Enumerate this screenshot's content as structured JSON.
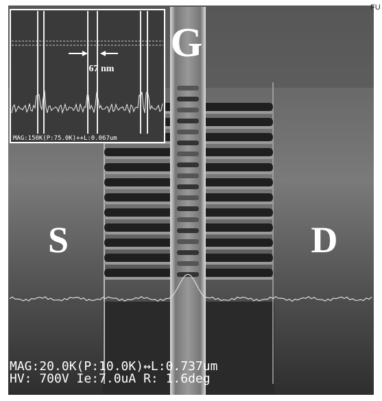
{
  "image": {
    "gate_label": "G",
    "source_label": "S",
    "drain_label": "D",
    "corner_text": "FU",
    "inset": {
      "dimension": "67 nm",
      "info": "MAG:150K(P:75.0K)++L:0.067um"
    },
    "footer": {
      "line1": "MAG:20.0K(P:10.0K)↔L:0.737um",
      "line2": "HV: 700V  Ie:7.0uA  R:  1.6deg"
    }
  }
}
